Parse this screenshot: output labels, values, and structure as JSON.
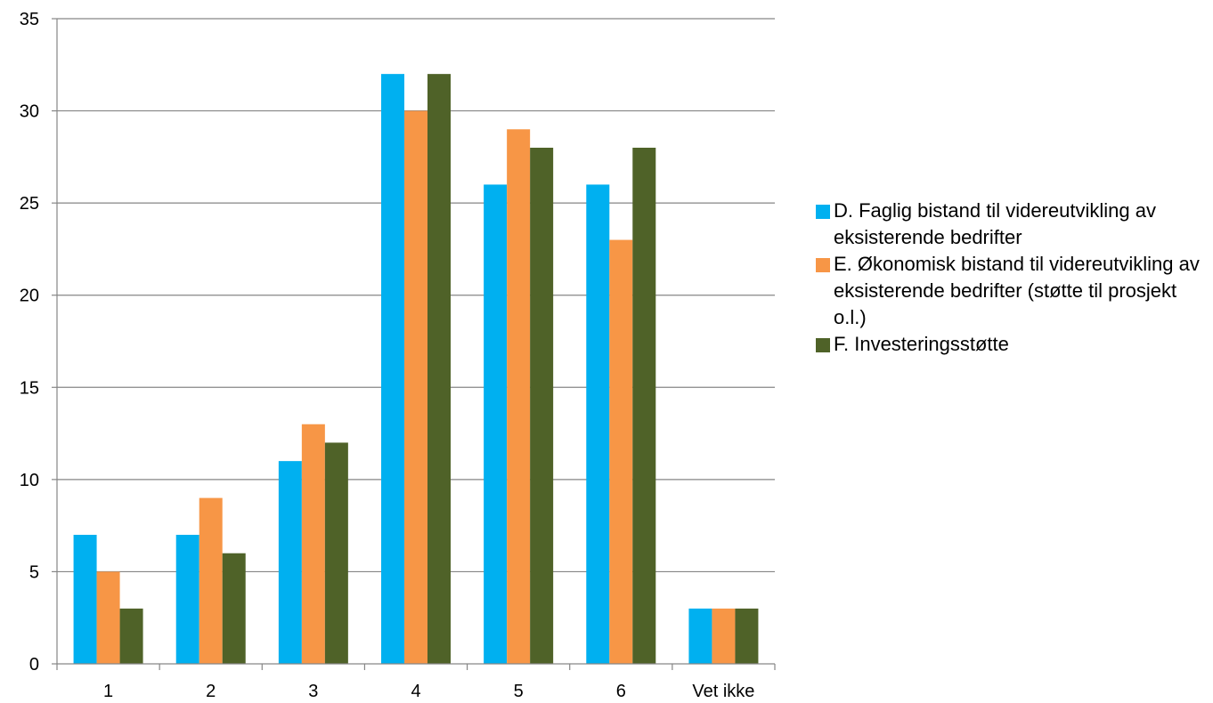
{
  "chart_data": {
    "type": "bar",
    "categories": [
      "1",
      "2",
      "3",
      "4",
      "5",
      "6",
      "Vet ikke"
    ],
    "series": [
      {
        "name": "D. Faglig bistand til videreutvikling av eksisterende bedrifter",
        "color": "#00B0F0",
        "values": [
          7,
          7,
          11,
          32,
          26,
          26,
          3
        ]
      },
      {
        "name": "E. Økonomisk bistand til videreutvikling av eksisterende bedrifter (støtte til prosjekt o.l.)",
        "color": "#F79646",
        "values": [
          5,
          9,
          13,
          30,
          29,
          23,
          3
        ]
      },
      {
        "name": "F. Investeringsstøtte",
        "color": "#4F6228",
        "values": [
          3,
          6,
          12,
          32,
          28,
          28,
          3
        ]
      }
    ],
    "ylim": [
      0,
      35
    ],
    "yticks": [
      0,
      5,
      10,
      15,
      20,
      25,
      30,
      35
    ],
    "grid": true,
    "legend_position": "right",
    "title": "",
    "xlabel": "",
    "ylabel": ""
  }
}
